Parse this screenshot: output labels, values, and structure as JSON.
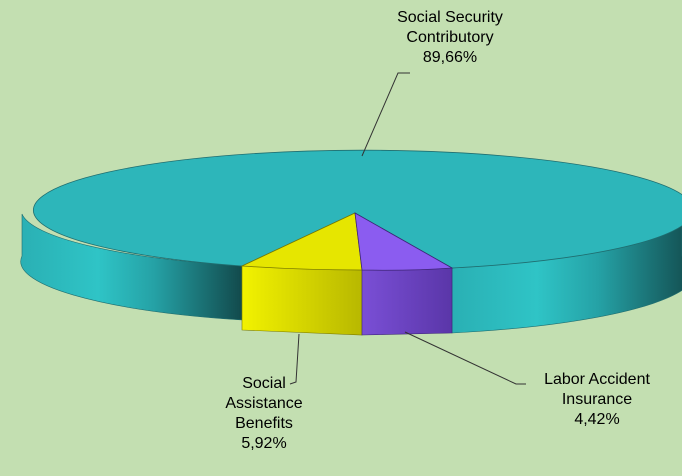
{
  "chart_data": {
    "type": "pie",
    "style": "3d-exploded",
    "slices": [
      {
        "label_lines": [
          "Social Security",
          "Contributory"
        ],
        "value_label": "89,66%",
        "value": 89.66,
        "color": "#2bb8bc"
      },
      {
        "label_lines": [
          "Labor Accident",
          "Insurance"
        ],
        "value_label": "4,42%",
        "value": 4.42,
        "color": "#8b5cf0"
      },
      {
        "label_lines": [
          "Social",
          "Assistance",
          "Benefits"
        ],
        "value_label": "5,92%",
        "value": 5.92,
        "color": "#e6e600"
      }
    ],
    "background_color": "#c3dfb1"
  }
}
